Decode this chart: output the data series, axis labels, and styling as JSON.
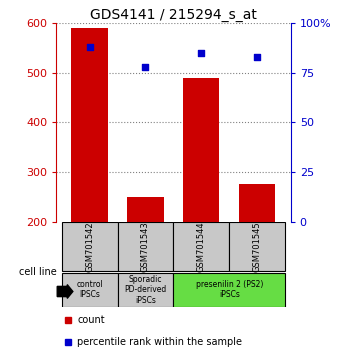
{
  "title": "GDS4141 / 215294_s_at",
  "samples": [
    "GSM701542",
    "GSM701543",
    "GSM701544",
    "GSM701545"
  ],
  "counts": [
    590,
    250,
    490,
    275
  ],
  "percentiles": [
    88,
    78,
    85,
    83
  ],
  "ylim_left": [
    200,
    600
  ],
  "ylim_right": [
    0,
    100
  ],
  "yticks_left": [
    200,
    300,
    400,
    500,
    600
  ],
  "yticks_right": [
    0,
    25,
    50,
    75,
    100
  ],
  "ytick_right_labels": [
    "0",
    "25",
    "50",
    "75",
    "100%"
  ],
  "bar_color": "#cc0000",
  "scatter_color": "#0000cc",
  "group_box_color_1": "#c8c8c8",
  "group_box_color_2": "#66dd44",
  "sample_box_color": "#c8c8c8",
  "cell_line_label": "cell line",
  "legend_count_label": "count",
  "legend_pct_label": "percentile rank within the sample",
  "bar_width": 0.65,
  "figsize": [
    3.4,
    3.54
  ],
  "dpi": 100,
  "group_info": [
    {
      "start": 0,
      "end": 0,
      "label": "control\nIPSCs",
      "color": "#c8c8c8"
    },
    {
      "start": 1,
      "end": 1,
      "label": "Sporadic\nPD-derived\niPSCs",
      "color": "#c8c8c8"
    },
    {
      "start": 2,
      "end": 3,
      "label": "presenilin 2 (PS2)\niPSCs",
      "color": "#66dd44"
    }
  ]
}
